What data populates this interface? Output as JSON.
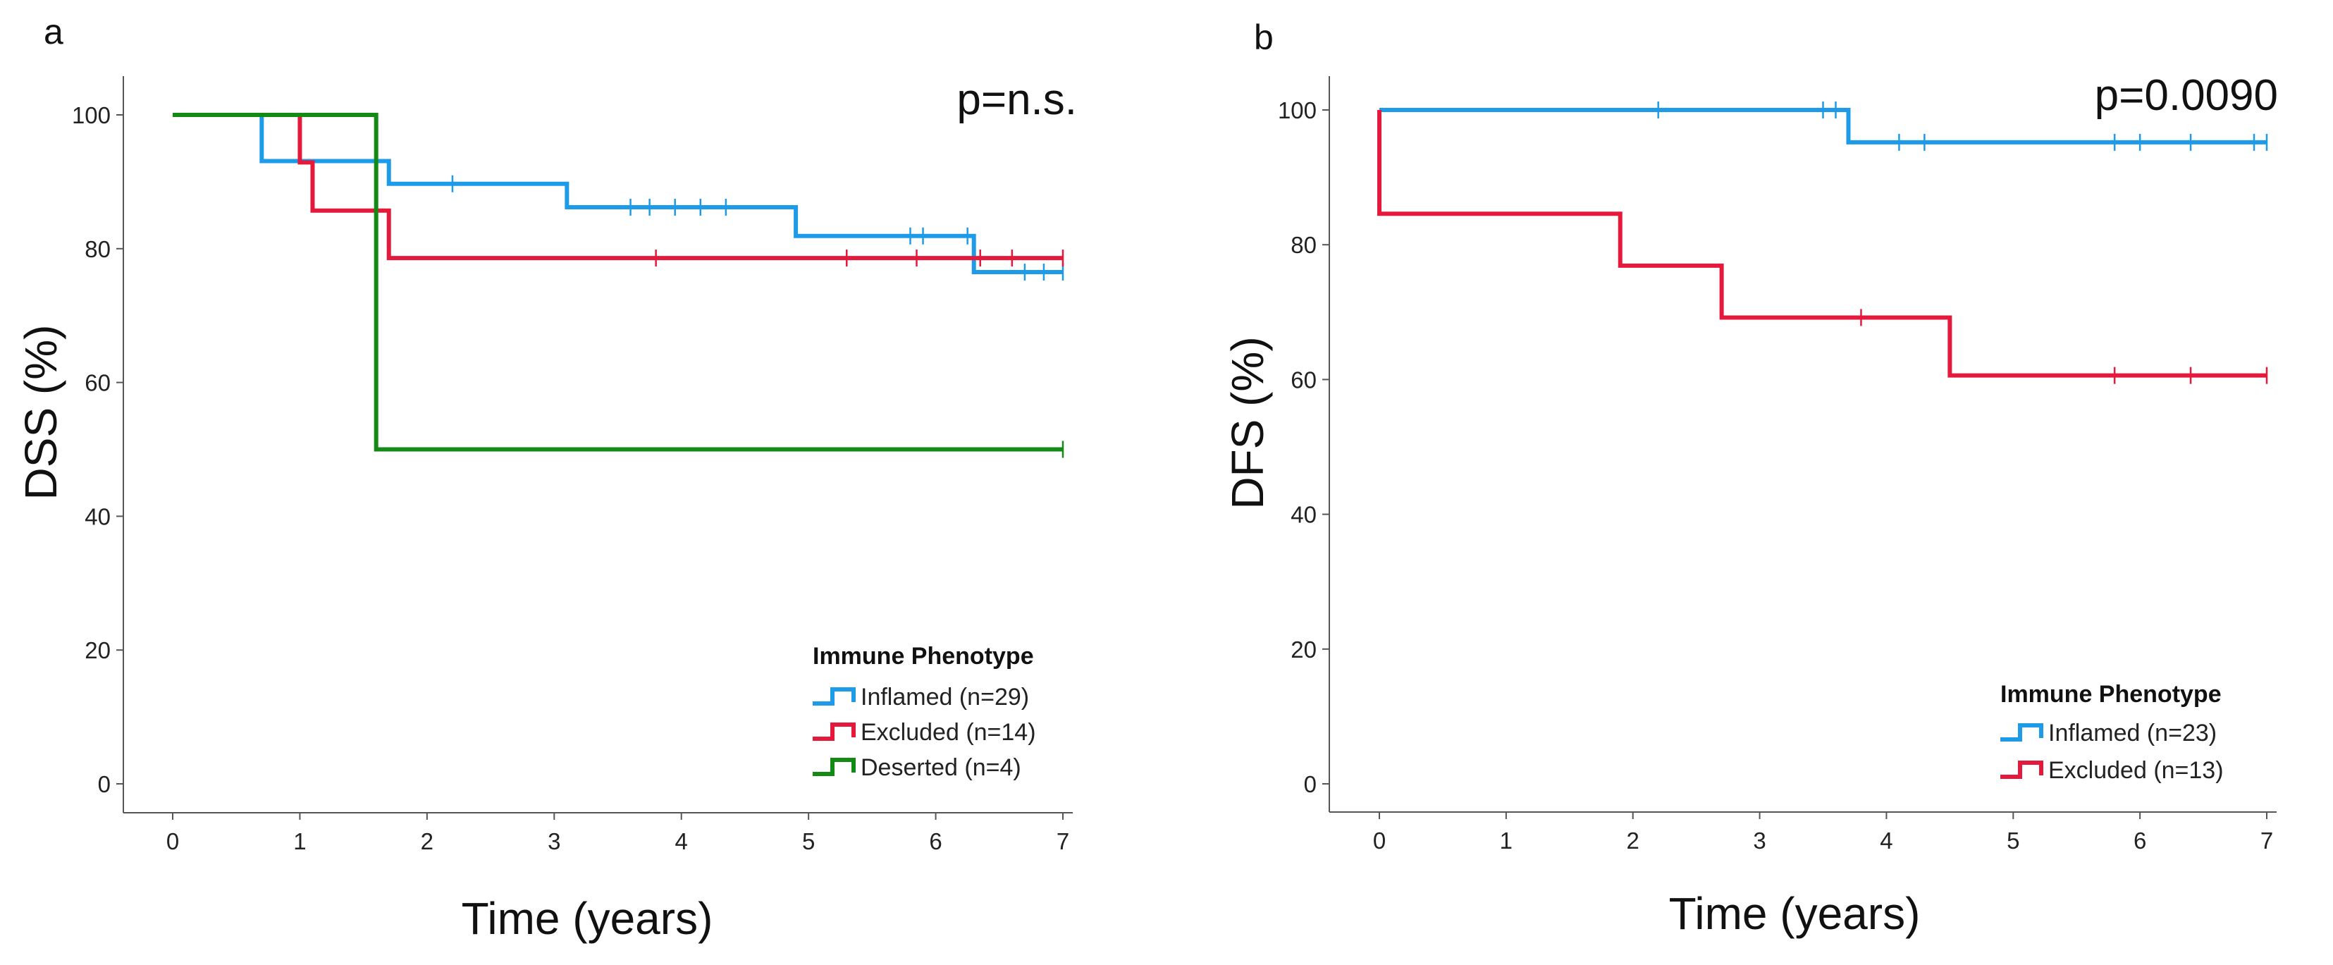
{
  "chart_data": [
    {
      "panel_label": "a",
      "type": "line",
      "subtype": "kaplan-meier",
      "title": "",
      "xlabel": "Time (years)",
      "ylabel": "DSS (%)",
      "xlim": [
        0,
        7
      ],
      "ylim": [
        0,
        100
      ],
      "x_ticks": [
        "0",
        "1",
        "2",
        "3",
        "4",
        "5",
        "6",
        "7"
      ],
      "y_ticks": [
        "0",
        "20",
        "40",
        "60",
        "80",
        "100"
      ],
      "grid": false,
      "annotation": "p=n.s.",
      "legend_title": "Immune Phenotype",
      "legend_position": "bottom-right",
      "series": [
        {
          "name": "Inflamed (n=29)",
          "color": "#1e9be8",
          "steps": [
            [
              0,
              100
            ],
            [
              0.7,
              93.1
            ],
            [
              1.7,
              89.7
            ],
            [
              3.1,
              86.2
            ],
            [
              4.9,
              81.9
            ],
            [
              6.3,
              76.5
            ],
            [
              7.0,
              76.5
            ]
          ],
          "censored": [
            [
              2.2,
              89.7
            ],
            [
              3.6,
              86.2
            ],
            [
              3.75,
              86.2
            ],
            [
              3.95,
              86.2
            ],
            [
              4.15,
              86.2
            ],
            [
              4.35,
              86.2
            ],
            [
              5.8,
              81.9
            ],
            [
              5.9,
              81.9
            ],
            [
              6.25,
              81.9
            ],
            [
              6.7,
              76.5
            ],
            [
              6.85,
              76.5
            ],
            [
              7.0,
              76.5
            ]
          ]
        },
        {
          "name": "Excluded (n=14)",
          "color": "#e4193c",
          "steps": [
            [
              0,
              100
            ],
            [
              1.0,
              92.9
            ],
            [
              1.1,
              85.7
            ],
            [
              1.7,
              78.6
            ],
            [
              7.0,
              78.6
            ]
          ],
          "censored": [
            [
              3.8,
              78.6
            ],
            [
              5.3,
              78.6
            ],
            [
              5.85,
              78.6
            ],
            [
              6.35,
              78.6
            ],
            [
              6.6,
              78.6
            ],
            [
              7.0,
              78.6
            ]
          ]
        },
        {
          "name": "Deserted (n=4)",
          "color": "#138a13",
          "steps": [
            [
              0,
              100
            ],
            [
              1.6,
              50.0
            ],
            [
              7.0,
              50.0
            ]
          ],
          "censored": [
            [
              7.0,
              50.0
            ]
          ]
        }
      ]
    },
    {
      "panel_label": "b",
      "type": "line",
      "subtype": "kaplan-meier",
      "title": "",
      "xlabel": "Time (years)",
      "ylabel": "DFS (%)",
      "xlim": [
        0,
        7
      ],
      "ylim": [
        0,
        100
      ],
      "x_ticks": [
        "0",
        "1",
        "2",
        "3",
        "4",
        "5",
        "6",
        "7"
      ],
      "y_ticks": [
        "0",
        "20",
        "40",
        "60",
        "80",
        "100"
      ],
      "grid": false,
      "annotation": "p=0.0090",
      "legend_title": "Immune Phenotype",
      "legend_position": "bottom-right",
      "series": [
        {
          "name": "Inflamed (n=23)",
          "color": "#1e9be8",
          "steps": [
            [
              0,
              100
            ],
            [
              3.7,
              95.2
            ],
            [
              7.0,
              95.2
            ]
          ],
          "censored": [
            [
              2.2,
              100
            ],
            [
              3.5,
              100
            ],
            [
              3.6,
              100
            ],
            [
              4.1,
              95.2
            ],
            [
              4.3,
              95.2
            ],
            [
              5.8,
              95.2
            ],
            [
              6.0,
              95.2
            ],
            [
              6.4,
              95.2
            ],
            [
              6.9,
              95.2
            ],
            [
              7.0,
              95.2
            ]
          ]
        },
        {
          "name": "Excluded (n=13)",
          "color": "#e4193c",
          "steps": [
            [
              0,
              100
            ],
            [
              0,
              84.6
            ],
            [
              1.9,
              76.9
            ],
            [
              2.7,
              69.2
            ],
            [
              4.5,
              60.6
            ],
            [
              7.0,
              60.6
            ]
          ],
          "censored": [
            [
              3.8,
              69.2
            ],
            [
              5.8,
              60.6
            ],
            [
              6.4,
              60.6
            ],
            [
              7.0,
              60.6
            ]
          ]
        }
      ]
    }
  ]
}
